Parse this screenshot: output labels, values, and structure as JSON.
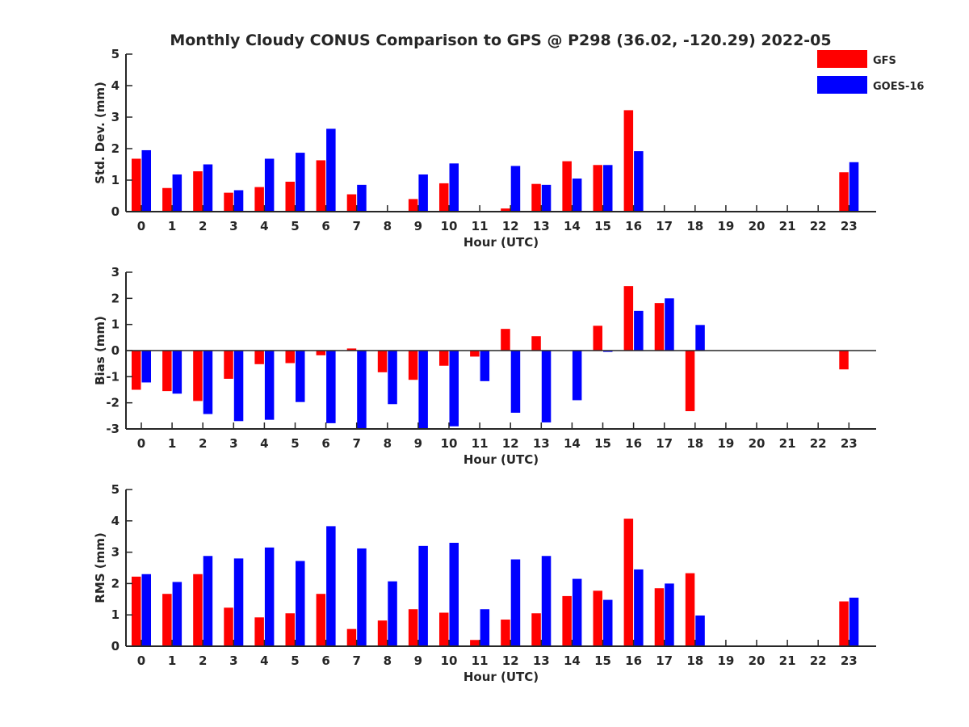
{
  "title": "Monthly Cloudy CONUS Comparison to GPS @ P298 (36.02, -120.29) 2022-05",
  "colors": {
    "GFS": "#ff0000",
    "GOES-16": "#0000ff",
    "axis": "#262626"
  },
  "legend": {
    "placement": "top-right",
    "items": [
      "GFS",
      "GOES-16"
    ]
  },
  "chart_data": [
    {
      "type": "bar",
      "xlabel": "Hour (UTC)",
      "ylabel": "Std. Dev. (mm)",
      "ylim": [
        0,
        5
      ],
      "yticks": [
        0,
        1,
        2,
        3,
        4,
        5
      ],
      "categories": [
        "0",
        "1",
        "2",
        "3",
        "4",
        "5",
        "6",
        "7",
        "8",
        "9",
        "10",
        "11",
        "12",
        "13",
        "14",
        "15",
        "16",
        "17",
        "18",
        "19",
        "20",
        "21",
        "22",
        "23"
      ],
      "series": [
        {
          "name": "GFS",
          "values": [
            1.68,
            0.75,
            1.28,
            0.6,
            0.78,
            0.95,
            1.63,
            0.55,
            null,
            0.4,
            0.9,
            null,
            0.1,
            0.88,
            1.6,
            1.48,
            3.22,
            null,
            null,
            null,
            null,
            null,
            null,
            1.25
          ]
        },
        {
          "name": "GOES-16",
          "values": [
            1.95,
            1.18,
            1.5,
            0.68,
            1.68,
            1.87,
            2.63,
            0.85,
            null,
            1.18,
            1.53,
            null,
            1.45,
            0.85,
            1.05,
            1.48,
            1.92,
            null,
            null,
            null,
            null,
            null,
            null,
            1.57
          ]
        }
      ]
    },
    {
      "type": "bar",
      "xlabel": "Hour (UTC)",
      "ylabel": "Bias (mm)",
      "ylim": [
        -3,
        3
      ],
      "yticks": [
        -3,
        -2,
        -1,
        0,
        1,
        2,
        3
      ],
      "categories": [
        "0",
        "1",
        "2",
        "3",
        "4",
        "5",
        "6",
        "7",
        "8",
        "9",
        "10",
        "11",
        "12",
        "13",
        "14",
        "15",
        "16",
        "17",
        "18",
        "19",
        "20",
        "21",
        "22",
        "23"
      ],
      "series": [
        {
          "name": "GFS",
          "values": [
            -1.5,
            -1.55,
            -1.93,
            -1.08,
            -0.52,
            -0.48,
            -0.18,
            0.08,
            -0.83,
            -1.12,
            -0.58,
            -0.23,
            0.83,
            0.55,
            null,
            0.95,
            2.47,
            1.82,
            -2.32,
            null,
            null,
            null,
            null,
            -0.72
          ]
        },
        {
          "name": "GOES-16",
          "values": [
            -1.22,
            -1.65,
            -2.43,
            -2.7,
            -2.65,
            -1.97,
            -2.78,
            -3.0,
            -2.05,
            -3.0,
            -2.9,
            -1.17,
            -2.38,
            -2.75,
            -1.9,
            -0.05,
            1.52,
            2.0,
            0.98,
            null,
            null,
            null,
            null,
            null
          ]
        }
      ]
    },
    {
      "type": "bar",
      "xlabel": "Hour (UTC)",
      "ylabel": "RMS (mm)",
      "ylim": [
        0,
        5
      ],
      "yticks": [
        0,
        1,
        2,
        3,
        4,
        5
      ],
      "categories": [
        "0",
        "1",
        "2",
        "3",
        "4",
        "5",
        "6",
        "7",
        "8",
        "9",
        "10",
        "11",
        "12",
        "13",
        "14",
        "15",
        "16",
        "17",
        "18",
        "19",
        "20",
        "21",
        "22",
        "23"
      ],
      "series": [
        {
          "name": "GFS",
          "values": [
            2.22,
            1.67,
            2.3,
            1.23,
            0.92,
            1.05,
            1.67,
            0.55,
            0.82,
            1.18,
            1.07,
            0.2,
            0.85,
            1.05,
            1.6,
            1.77,
            4.07,
            1.85,
            2.33,
            null,
            null,
            null,
            null,
            1.43
          ]
        },
        {
          "name": "GOES-16",
          "values": [
            2.3,
            2.05,
            2.88,
            2.8,
            3.15,
            2.72,
            3.83,
            3.12,
            2.07,
            3.2,
            3.3,
            1.18,
            2.77,
            2.88,
            2.15,
            1.48,
            2.45,
            2.0,
            0.98,
            null,
            null,
            null,
            null,
            1.55
          ]
        }
      ]
    }
  ]
}
